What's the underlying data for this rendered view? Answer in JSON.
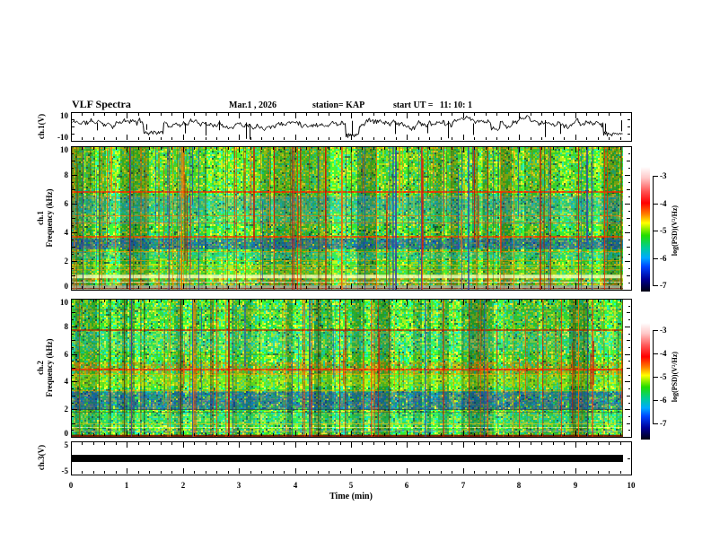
{
  "header": {
    "title": "VLF Spectra",
    "date": "Mar.1 , 2026",
    "station": "station= KAP",
    "start_ut": "start UT =   11: 10: 1"
  },
  "time_axis": {
    "label": "Time (min)",
    "min": 0,
    "max": 10,
    "tick_labels": [
      "0",
      "1",
      "2",
      "3",
      "4",
      "5",
      "6",
      "7",
      "8",
      "9",
      "10"
    ],
    "minor_per_major": 5
  },
  "panels": {
    "ch1_wave": {
      "ylabel": "ch.1(V)",
      "ymin": -10,
      "ymax": 10,
      "ytick_labels": [
        "10",
        "-10"
      ]
    },
    "ch1_spec": {
      "ylabel_ch": "ch.1",
      "ylabel_axis": "Frequency (kHz)",
      "ymin": 0,
      "ymax": 10,
      "ytick_labels": [
        "10",
        "8",
        "6",
        "4",
        "2",
        "0"
      ]
    },
    "ch2_spec": {
      "ylabel_ch": "ch.2",
      "ylabel_axis": "Frequency (kHz)",
      "ymin": 0,
      "ymax": 10,
      "ytick_labels": [
        "10",
        "8",
        "6",
        "4",
        "2",
        "0"
      ]
    },
    "ch3_wave": {
      "ylabel": "ch.3(V)",
      "ymin": -5,
      "ymax": 5,
      "ytick_labels": [
        "5",
        "-5"
      ]
    }
  },
  "colorbars": [
    {
      "label": "log(PSD)(V²/Hz)",
      "tick_labels": [
        "-3",
        "-4",
        "-5",
        "-6",
        "-7"
      ],
      "gradient": [
        [
          "#ffffff",
          0
        ],
        [
          "#ffc8c8",
          9
        ],
        [
          "#ff5050",
          20
        ],
        [
          "#ff0000",
          29
        ],
        [
          "#ff8000",
          38
        ],
        [
          "#ffff00",
          45
        ],
        [
          "#22dd00",
          55
        ],
        [
          "#00cc99",
          65
        ],
        [
          "#00aaff",
          73
        ],
        [
          "#0044ff",
          80
        ],
        [
          "#000099",
          90
        ],
        [
          "#000011",
          100
        ]
      ]
    },
    {
      "label": "log(PSD)(V²/Hz)",
      "tick_labels": [
        "-3",
        "-4",
        "-5",
        "-6",
        "-7"
      ],
      "gradient": [
        [
          "#ffffff",
          0
        ],
        [
          "#ffc8c8",
          9
        ],
        [
          "#ff5050",
          20
        ],
        [
          "#ff0000",
          29
        ],
        [
          "#ff8000",
          38
        ],
        [
          "#ffff00",
          45
        ],
        [
          "#22dd00",
          55
        ],
        [
          "#00cc99",
          65
        ],
        [
          "#00aaff",
          73
        ],
        [
          "#0044ff",
          80
        ],
        [
          "#000099",
          90
        ],
        [
          "#000011",
          100
        ]
      ]
    }
  ],
  "chart_data": [
    {
      "id": "ch1_waveform",
      "type": "line",
      "ylabel": "ch.1(V)",
      "ylim": [
        -10,
        10
      ],
      "xlim_min": [
        0,
        10
      ],
      "line_color": "#000000",
      "baseline_v": 3.2,
      "noise_v": 2.2,
      "dips": [
        {
          "t_min": 1.45,
          "halfwidth_min": 0.18,
          "v": -5
        },
        {
          "t_min": 5.0,
          "halfwidth_min": 0.12,
          "v": -7
        },
        {
          "t_min": 7.55,
          "halfwidth_min": 0.08,
          "v": -2.5
        },
        {
          "t_min": 9.7,
          "halfwidth_min": 0.22,
          "v": -6
        }
      ],
      "spike_count": 16,
      "spike_v_range": [
        -9,
        -2
      ],
      "seed": 11
    },
    {
      "id": "ch1_spectrogram",
      "type": "heatmap",
      "ylabel": "Frequency (kHz)",
      "ylim_khz": [
        0,
        10
      ],
      "xlim_min": [
        0,
        10
      ],
      "z_units": "log(PSD)(V²/Hz)",
      "z_range": [
        -7,
        -3
      ],
      "background": "mottled green / yellow-green / cyan with vertical striping",
      "bands": [
        {
          "f": [
            7.0,
            10.0
          ],
          "color": "#ccdd00",
          "alpha": 0.15,
          "style": "mottle"
        },
        {
          "f": [
            4.7,
            6.6
          ],
          "color": "#33bbee",
          "alpha": 0.33,
          "style": "mottle"
        },
        {
          "f": [
            5.5,
            6.5
          ],
          "color": "#2255cc",
          "alpha": 0.22,
          "style": "mottle"
        },
        {
          "f": [
            2.9,
            3.6
          ],
          "color": "#1133cc",
          "alpha": 0.72,
          "style": "mottle"
        },
        {
          "f": [
            2.15,
            2.65
          ],
          "color": "#22bbcc",
          "alpha": 0.45,
          "style": "mottle"
        },
        {
          "f": [
            1.0,
            1.75
          ],
          "color": "#99cc22",
          "alpha": 0.35,
          "style": "mottle"
        },
        {
          "f": [
            0.8,
            1.05
          ],
          "color": "#ffffbb",
          "alpha": 0.8,
          "style": "solid"
        },
        {
          "f": [
            0.35,
            0.8
          ],
          "color": "#ee5500",
          "alpha": 0.6,
          "style": "speckle"
        },
        {
          "f": [
            0.0,
            0.3
          ],
          "color": "#aaaa99",
          "alpha": 0.85,
          "style": "solid"
        }
      ],
      "lines": [
        {
          "f": 9.95,
          "color": "#ff8800",
          "alpha": 0.5,
          "w": 1
        },
        {
          "f": 6.9,
          "color": "#ff2200",
          "alpha": 0.95,
          "w": 2
        },
        {
          "f": 6.55,
          "color": "#ff8800",
          "alpha": 0.5,
          "w": 1
        },
        {
          "f": 5.2,
          "color": "#ff6600",
          "alpha": 0.75,
          "w": 1
        },
        {
          "f": 4.7,
          "color": "#ff4400",
          "alpha": 0.6,
          "w": 1
        },
        {
          "f": 3.75,
          "color": "#ff3300",
          "alpha": 0.9,
          "w": 2
        },
        {
          "f": 2.7,
          "color": "#ff8800",
          "alpha": 0.7,
          "w": 1
        },
        {
          "f": 2.1,
          "color": "#ff9900",
          "alpha": 0.6,
          "w": 1
        },
        {
          "f": 1.75,
          "color": "#ffcc00",
          "alpha": 0.7,
          "w": 1
        },
        {
          "f": 1.45,
          "color": "#ff9900",
          "alpha": 0.55,
          "w": 1
        },
        {
          "f": 0.55,
          "color": "#ffffee",
          "alpha": 0.8,
          "w": 1
        },
        {
          "f": 0.15,
          "color": "#881100",
          "alpha": 0.8,
          "w": 1
        }
      ],
      "streaks": {
        "count": 170,
        "full_frac": 0.45,
        "top_bias": true,
        "colors": [
          "#ff2a00",
          "#ff7700",
          "#cc1100",
          "#3344aa",
          "#774400"
        ],
        "alpha_range": [
          0.18,
          0.8
        ]
      },
      "seed": 7
    },
    {
      "id": "ch2_spectrogram",
      "type": "heatmap",
      "ylabel": "Frequency (kHz)",
      "ylim_khz": [
        0,
        10
      ],
      "xlim_min": [
        0,
        10
      ],
      "z_units": "log(PSD)(V²/Hz)",
      "z_range": [
        -7,
        -3
      ],
      "background": "mottled green / yellow-green / cyan with vertical striping",
      "bands": [
        {
          "f": [
            8.3,
            9.6
          ],
          "color": "#44aa66",
          "alpha": 0.18,
          "style": "mottle"
        },
        {
          "f": [
            6.3,
            7.7
          ],
          "color": "#33bbee",
          "alpha": 0.3,
          "style": "mottle"
        },
        {
          "f": [
            4.55,
            5.45
          ],
          "color": "#ff5500",
          "alpha": 0.55,
          "style": "speckle"
        },
        {
          "f": [
            3.7,
            4.6
          ],
          "color": "#bbdd00",
          "alpha": 0.5,
          "style": "mottle"
        },
        {
          "f": [
            2.1,
            3.3
          ],
          "color": "#1133cc",
          "alpha": 0.72,
          "style": "mottle"
        },
        {
          "f": [
            0.9,
            1.75
          ],
          "color": "#22ccbb",
          "alpha": 0.4,
          "style": "mottle"
        },
        {
          "f": [
            0.3,
            0.55
          ],
          "color": "#2244bb",
          "alpha": 0.55,
          "style": "speckle"
        },
        {
          "f": [
            0.0,
            0.15
          ],
          "color": "#771100",
          "alpha": 0.9,
          "style": "solid"
        }
      ],
      "lines": [
        {
          "f": 9.25,
          "color": "#666633",
          "alpha": 0.6,
          "w": 1
        },
        {
          "f": 7.85,
          "color": "#bb2200",
          "alpha": 0.85,
          "w": 2
        },
        {
          "f": 6.0,
          "color": "#667744",
          "alpha": 0.5,
          "w": 1
        },
        {
          "f": 5.0,
          "color": "#ff2200",
          "alpha": 0.95,
          "w": 2
        },
        {
          "f": 4.6,
          "color": "#ffaa00",
          "alpha": 0.6,
          "w": 1
        },
        {
          "f": 3.4,
          "color": "#ff8800",
          "alpha": 0.6,
          "w": 1
        },
        {
          "f": 2.0,
          "color": "#223344",
          "alpha": 0.8,
          "w": 1
        },
        {
          "f": 1.8,
          "color": "#334455",
          "alpha": 0.6,
          "w": 1
        },
        {
          "f": 0.95,
          "color": "#ffcc00",
          "alpha": 0.8,
          "w": 1
        },
        {
          "f": 0.7,
          "color": "#ffffdd",
          "alpha": 0.7,
          "w": 1
        },
        {
          "f": 0.45,
          "color": "#ddee66",
          "alpha": 0.6,
          "w": 1
        }
      ],
      "streaks": {
        "count": 150,
        "full_frac": 0.5,
        "top_bias": false,
        "colors": [
          "#ff2a00",
          "#ff7700",
          "#cc1100",
          "#3344aa",
          "#553300"
        ],
        "alpha_range": [
          0.15,
          0.75
        ]
      },
      "seed": 13
    },
    {
      "id": "ch3_waveform",
      "type": "line",
      "ylabel": "ch.3(V)",
      "ylim": [
        -5,
        5
      ],
      "xlim_min": [
        0,
        10
      ],
      "line_color": "#000000",
      "value_v": 0,
      "bar_halfheight_v": 1.1,
      "description": "constant saturated flat trace drawn as a thick black bar at 0 V"
    }
  ]
}
